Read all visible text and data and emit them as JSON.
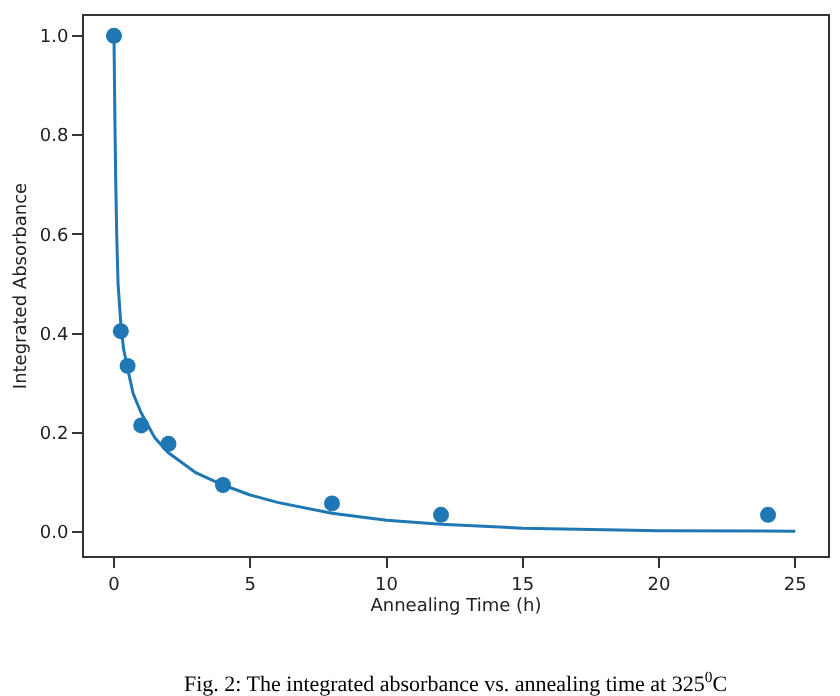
{
  "chart_data": {
    "type": "scatter",
    "xlabel": "Annealing Time (h)",
    "ylabel": "Integrated Absorbance",
    "annotations": [
      "Fig. 2: The integrated absorbance vs. annealing time at 325$^{0}$C"
    ],
    "series": [
      {
        "color": "#1f77b4",
        "marker": "circle",
        "x": [
          0,
          0.25,
          0.5,
          1,
          2,
          4,
          8,
          12,
          24
        ],
        "values": [
          1.0,
          0.405,
          0.335,
          0.215,
          0.178,
          0.095,
          0.058,
          0.035,
          0.035
        ]
      },
      {
        "type": "line",
        "color": "#1f77b4",
        "marker": "none",
        "x": [
          0,
          0.03,
          0.06,
          0.1,
          0.15,
          0.25,
          0.35,
          0.5,
          0.7,
          1,
          1.5,
          2,
          3,
          4,
          5,
          6,
          8,
          10,
          12,
          15,
          20,
          25
        ],
        "values": [
          1.0,
          0.85,
          0.72,
          0.6,
          0.5,
          0.42,
          0.37,
          0.33,
          0.28,
          0.24,
          0.19,
          0.16,
          0.12,
          0.095,
          0.075,
          0.06,
          0.038,
          0.024,
          0.016,
          0.008,
          0.003,
          0.002
        ]
      }
    ],
    "xlim": [
      -1.1,
      26.2
    ],
    "xticks": [
      0,
      5,
      10,
      15,
      20,
      25
    ],
    "ylim": [
      -0.048,
      1.04
    ],
    "yticks": [
      {
        "value": 0,
        "label": "0.0"
      },
      0.2,
      0.4,
      0.6,
      0.8,
      {
        "value": 1,
        "label": "1.0"
      }
    ]
  }
}
